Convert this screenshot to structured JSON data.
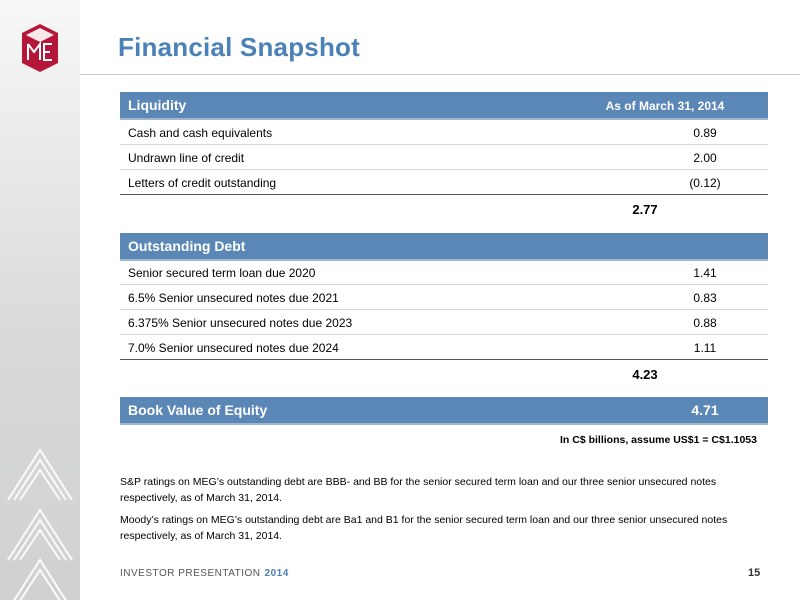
{
  "title": "Financial Snapshot",
  "liquidity": {
    "header": "Liquidity",
    "date_label": "As of March 31, 2014",
    "rows": [
      {
        "label": "Cash and cash equivalents",
        "value": "0.89"
      },
      {
        "label": "Undrawn line of credit",
        "value": "2.00"
      },
      {
        "label": "Letters of credit outstanding",
        "value": "(0.12)"
      }
    ],
    "total": "2.77"
  },
  "debt": {
    "header": "Outstanding Debt",
    "rows": [
      {
        "label": "Senior secured term loan due 2020",
        "value": "1.41"
      },
      {
        "label": "6.5% Senior unsecured notes due 2021",
        "value": "0.83"
      },
      {
        "label": "6.375% Senior unsecured notes due 2023",
        "value": "0.88"
      },
      {
        "label": "7.0% Senior unsecured notes due 2024",
        "value": "1.11"
      }
    ],
    "total": "4.23"
  },
  "equity": {
    "label": "Book Value of Equity",
    "value": "4.71"
  },
  "note": "In C$ billions, assume US$1 = C$1.1053",
  "paragraphs": [
    "S&P ratings on MEG’s outstanding debt are BBB- and BB for the senior secured term loan and our three senior unsecured notes respectively, as of March 31, 2014.",
    "Moody’s ratings on MEG’s outstanding debt are Ba1 and B1 for the senior secured term loan and our three senior unsecured notes respectively, as of March 31, 2014."
  ],
  "footer": {
    "label": "INVESTOR PRESENTATION",
    "year": "2014",
    "page": "15"
  },
  "colors": {
    "accent": "#4a81b7",
    "header_bar": "#5b87b7",
    "logo": "#b5173a"
  },
  "icons": {
    "logo": "meg-cube-logo",
    "sidebar": "chevron-arrows-graphic"
  }
}
